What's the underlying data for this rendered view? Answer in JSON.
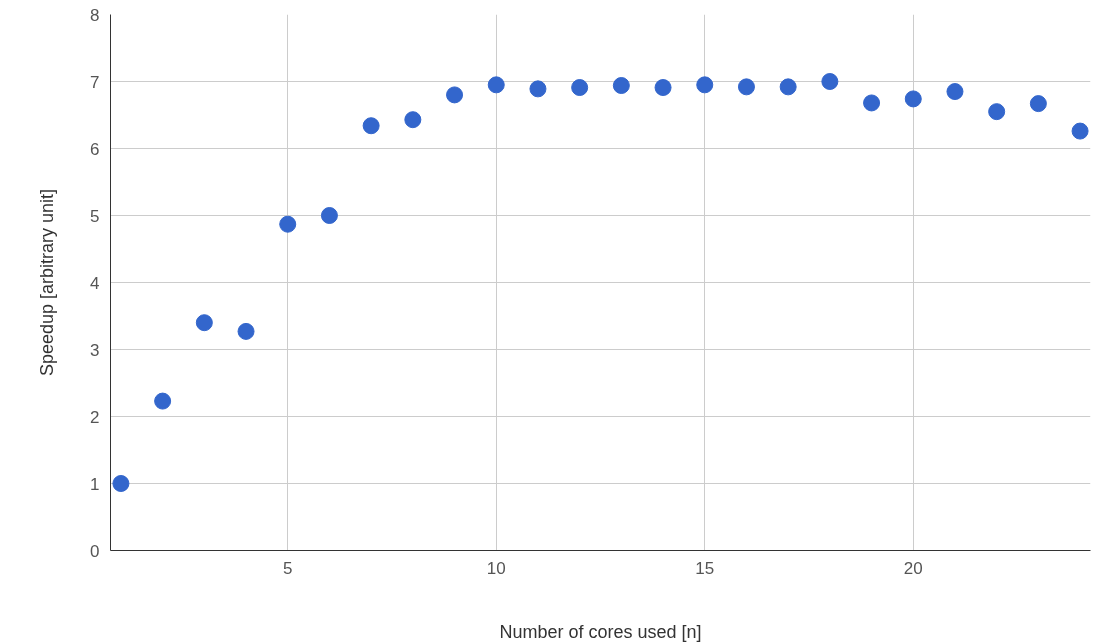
{
  "chart_data": {
    "type": "scatter",
    "xlabel": "Number of cores used [n]",
    "ylabel": "Speedup [arbitrary unit]",
    "x": [
      1,
      2,
      3,
      4,
      5,
      6,
      7,
      8,
      9,
      10,
      11,
      12,
      13,
      14,
      15,
      16,
      17,
      18,
      19,
      20,
      21,
      22,
      23,
      24
    ],
    "series": [
      {
        "color": "#3366cc",
        "values": [
          1.0,
          2.23,
          3.4,
          3.27,
          4.87,
          5.0,
          6.34,
          6.43,
          6.8,
          6.95,
          6.89,
          6.91,
          6.94,
          6.91,
          6.95,
          6.92,
          6.92,
          7.0,
          6.68,
          6.74,
          6.85,
          6.55,
          6.67,
          6.26
        ]
      }
    ],
    "xlim": [
      0.75,
      24.25
    ],
    "ylim": [
      0,
      8
    ],
    "xticks": [
      5,
      10,
      15,
      20
    ],
    "yticks": [
      0,
      1,
      2,
      3,
      4,
      5,
      6,
      7,
      8
    ],
    "grid": true,
    "marker": "circle"
  }
}
